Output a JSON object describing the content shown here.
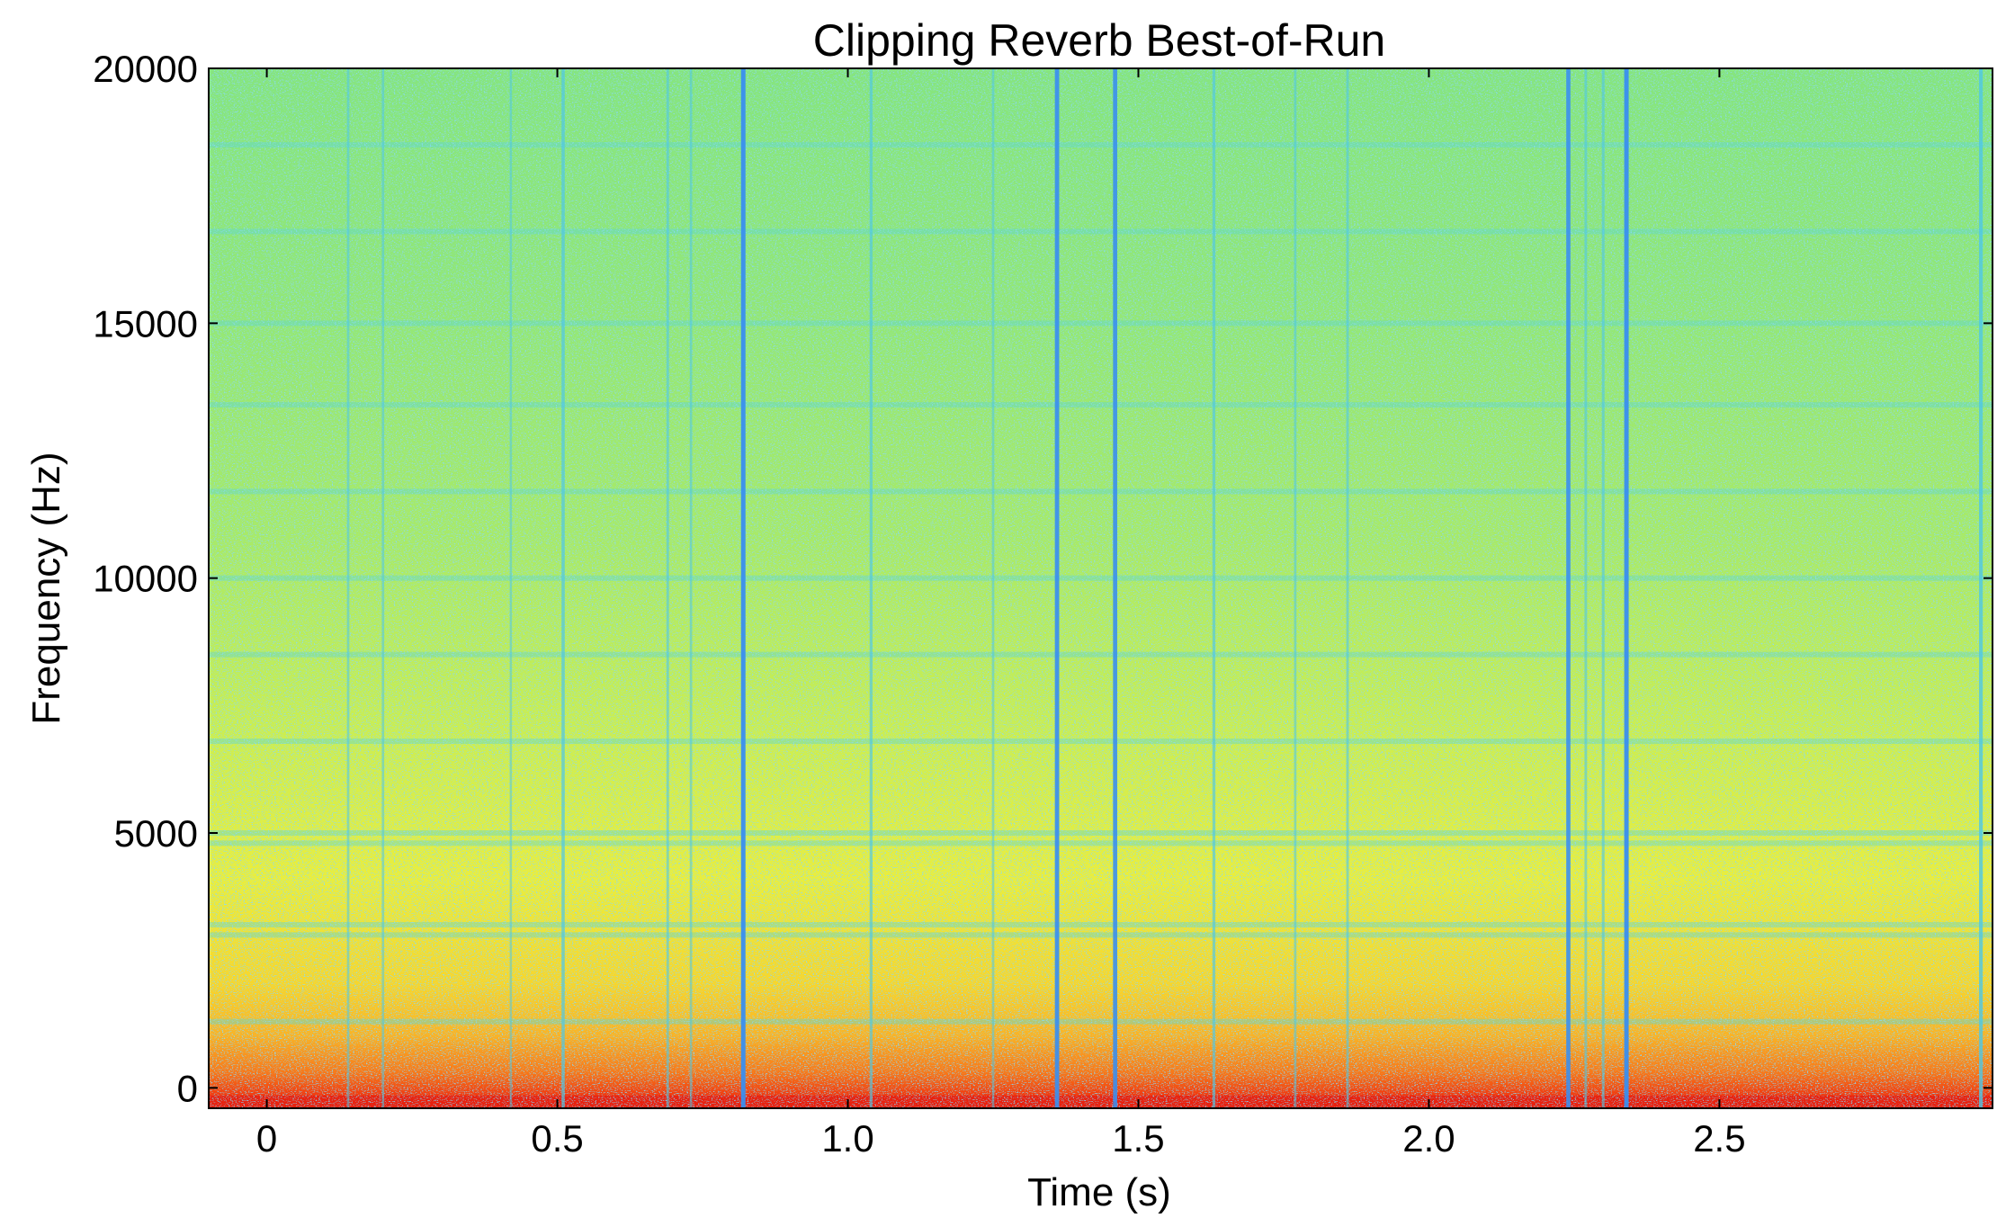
{
  "chart_data": {
    "type": "heatmap",
    "title": "Clipping Reverb Best-of-Run",
    "xlabel": "Time (s)",
    "ylabel": "Frequency (Hz)",
    "xlim": [
      -0.1,
      2.97
    ],
    "ylim": [
      -400,
      20000
    ],
    "x_ticks": [
      0,
      0.5,
      1.0,
      1.5,
      2.0,
      2.5
    ],
    "x_tick_labels": [
      "0",
      "0.5",
      "1.0",
      "1.5",
      "2.0",
      "2.5"
    ],
    "y_ticks": [
      0,
      5000,
      10000,
      15000,
      20000
    ],
    "y_tick_labels": [
      "0",
      "5000",
      "10000",
      "15000",
      "20000"
    ],
    "colormap": "jet",
    "grid": false,
    "low_frequency_energy_band_hz": 1500,
    "horizontal_partial_bands_hz": [
      1300,
      3000,
      3200,
      4800,
      5000,
      6800,
      8500,
      10000,
      11700,
      13400,
      15000,
      16800,
      18500
    ],
    "vertical_transients": [
      {
        "time_s": 0.14,
        "strength": 0.35
      },
      {
        "time_s": 0.2,
        "strength": 0.35
      },
      {
        "time_s": 0.42,
        "strength": 0.3
      },
      {
        "time_s": 0.51,
        "strength": 0.6
      },
      {
        "time_s": 0.69,
        "strength": 0.4
      },
      {
        "time_s": 0.73,
        "strength": 0.35
      },
      {
        "time_s": 0.82,
        "strength": 1.0
      },
      {
        "time_s": 1.04,
        "strength": 0.5
      },
      {
        "time_s": 1.25,
        "strength": 0.35
      },
      {
        "time_s": 1.36,
        "strength": 0.95
      },
      {
        "time_s": 1.46,
        "strength": 0.9
      },
      {
        "time_s": 1.63,
        "strength": 0.5
      },
      {
        "time_s": 1.77,
        "strength": 0.35
      },
      {
        "time_s": 1.86,
        "strength": 0.4
      },
      {
        "time_s": 2.24,
        "strength": 0.9
      },
      {
        "time_s": 2.27,
        "strength": 0.4
      },
      {
        "time_s": 2.3,
        "strength": 0.45
      },
      {
        "time_s": 2.34,
        "strength": 1.0
      },
      {
        "time_s": 2.95,
        "strength": 0.75
      }
    ],
    "colors": {
      "low_band": "#e8200e",
      "mid_band": "#f5e62a",
      "high_band": "#8fe87a",
      "transient_line": "#3a8ff0"
    }
  }
}
